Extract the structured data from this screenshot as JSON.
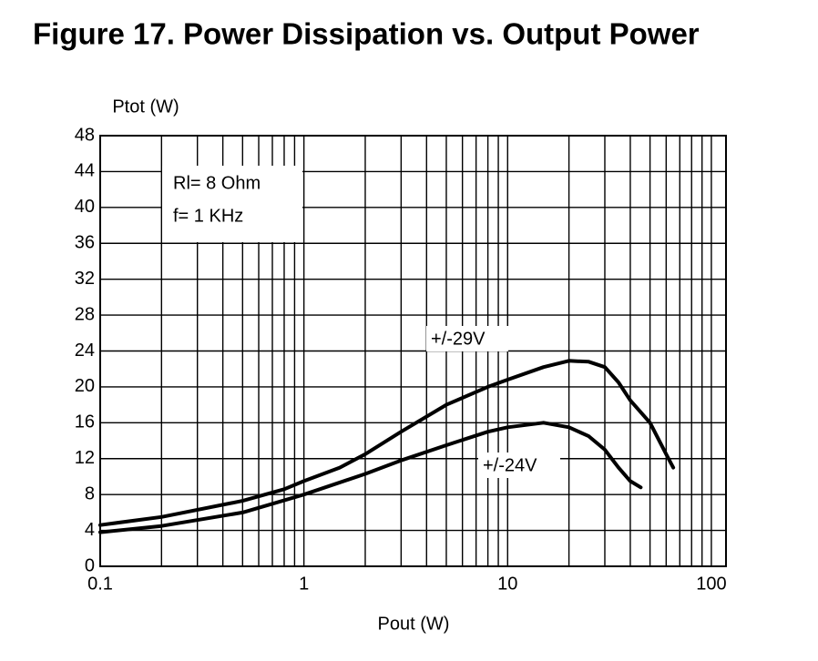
{
  "chart_data": {
    "type": "line",
    "title": "Figure 17. Power Dissipation vs. Output Power",
    "x_label": "Pout (W)",
    "y_label": "Ptot (W)",
    "log_x": true,
    "grid": true,
    "xlim": [
      0.1,
      118
    ],
    "ylim": [
      0,
      48
    ],
    "xticks": [
      0.1,
      1,
      10,
      100
    ],
    "xminor": [
      0.2,
      0.3,
      0.4,
      0.5,
      0.6,
      0.7,
      0.8,
      0.9,
      2,
      3,
      4,
      5,
      6,
      7,
      8,
      9,
      20,
      30,
      40,
      50,
      60,
      70,
      80,
      90
    ],
    "yticks": [
      0,
      4,
      8,
      12,
      16,
      20,
      24,
      28,
      32,
      36,
      40,
      44,
      48
    ],
    "annotations": [
      "Rl= 8 Ohm",
      "f= 1 KHz"
    ],
    "series": [
      {
        "name": "+/-29V",
        "color": "#000000",
        "x": [
          0.1,
          0.2,
          0.5,
          0.8,
          1,
          1.5,
          2,
          3,
          5,
          8,
          10,
          15,
          20,
          25,
          30,
          35,
          40,
          50,
          60,
          65
        ],
        "values": [
          4.6,
          5.5,
          7.3,
          8.6,
          9.5,
          11,
          12.5,
          15,
          18,
          20,
          20.8,
          22.2,
          22.9,
          22.8,
          22.2,
          20.5,
          18.5,
          16,
          12.5,
          11
        ]
      },
      {
        "name": "+/-24V",
        "color": "#000000",
        "x": [
          0.1,
          0.2,
          0.5,
          1,
          2,
          3,
          5,
          8,
          10,
          15,
          20,
          25,
          30,
          35,
          40,
          45
        ],
        "values": [
          3.8,
          4.5,
          6,
          8,
          10.3,
          11.8,
          13.5,
          15,
          15.5,
          16,
          15.5,
          14.5,
          13,
          11,
          9.5,
          8.8
        ]
      }
    ]
  }
}
